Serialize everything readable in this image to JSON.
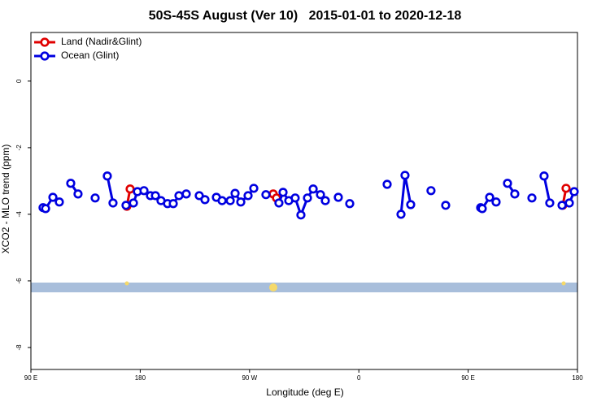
{
  "chart_data": {
    "type": "line",
    "title": "50S-45S August (Ver 10)   2015-01-01 to 2020-12-18",
    "x_label": "Longitude (deg E)",
    "y_label": "XCO2 - MLO trend (ppm)",
    "xlim": [
      90,
      540
    ],
    "xticks": [
      {
        "value": 90,
        "label": "90 E"
      },
      180,
      {
        "value": 270,
        "label": "90 W"
      },
      {
        "value": 360,
        "label": "0"
      },
      {
        "value": 450,
        "label": "90 E"
      },
      {
        "value": 540,
        "label": "180"
      }
    ],
    "ylim": [
      -8.66,
      1.46
    ],
    "yticks": [
      0,
      -2,
      -4,
      -6,
      -8
    ],
    "legend": "top-left",
    "series": [
      {
        "name": "Land (Nadir&Glint)",
        "color": "#e00000",
        "x": [
          169.0,
          171.7,
          null,
          289.5,
          292.2,
          null,
          527.9,
          530.6
        ],
        "values": [
          -3.76,
          -3.24,
          null,
          -3.39,
          -3.51,
          null,
          -3.73,
          -3.22
        ]
      },
      {
        "name": "Ocean (Glint)",
        "color": "#0000e0",
        "x": [
          100.0,
          102.1,
          108.1,
          113.4,
          null,
          122.8,
          128.8,
          null,
          142.9,
          null,
          152.9,
          157.6,
          null,
          168.3,
          174.4,
          177.7,
          183.1,
          188.4,
          192.5,
          197.1,
          202.5,
          207.2,
          211.9,
          217.9,
          null,
          228.6,
          233.3,
          null,
          242.7,
          247.4,
          254.1,
          258.1,
          262.8,
          268.8,
          273.5,
          null,
          283.5,
          null,
          294.2,
          297.6,
          302.3,
          307.6,
          312.3,
          317.7,
          322.4,
          328.4,
          332.4,
          null,
          343.1,
          null,
          352.5,
          null,
          383.3,
          null,
          394.7,
          398.0,
          402.7,
          null,
          419.4,
          null,
          431.5,
          null,
          460.3,
          461.6,
          467.7,
          473.0,
          null,
          482.4,
          488.4,
          null,
          502.5,
          null,
          512.5,
          517.2,
          null,
          527.3,
          533.3,
          537.3
        ],
        "values": [
          -3.8,
          -3.83,
          -3.49,
          -3.63,
          null,
          -3.07,
          -3.39,
          null,
          -3.51,
          null,
          -2.85,
          -3.66,
          null,
          -3.73,
          -3.66,
          -3.32,
          -3.29,
          -3.44,
          -3.44,
          -3.59,
          -3.68,
          -3.68,
          -3.44,
          -3.39,
          null,
          -3.44,
          -3.56,
          null,
          -3.49,
          -3.59,
          -3.59,
          -3.37,
          -3.63,
          -3.44,
          -3.22,
          null,
          -3.41,
          null,
          -3.66,
          -3.34,
          -3.59,
          -3.51,
          -4.02,
          -3.51,
          -3.24,
          -3.41,
          -3.59,
          null,
          -3.49,
          null,
          -3.68,
          null,
          -3.1,
          null,
          -4.0,
          -2.83,
          -3.71,
          null,
          -3.29,
          null,
          -3.73,
          null,
          -3.8,
          -3.83,
          -3.49,
          -3.63,
          null,
          -3.07,
          -3.39,
          null,
          -3.51,
          null,
          -2.85,
          -3.66,
          null,
          -3.73,
          -3.66,
          -3.32
        ]
      }
    ]
  }
}
